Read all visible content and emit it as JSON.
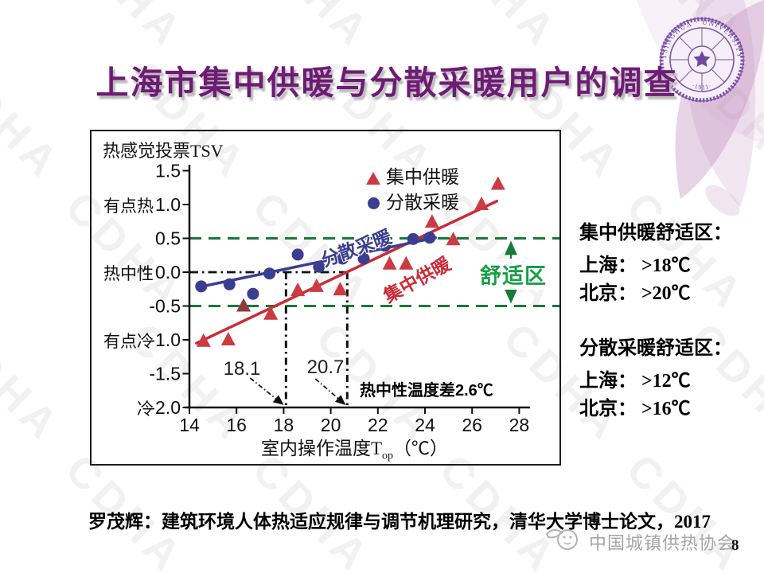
{
  "slide": {
    "title": "上海市集中供暖与分散采暖用户的调查",
    "citation": "罗茂辉：建筑环境人体热适应规律与调节机理研究，清华大学博士论文，2017",
    "footer_org": "中国城镇供热协会",
    "page_number": "8",
    "watermark_text": "CDHA"
  },
  "seal": {
    "ring_text": "TSINGHUA · UNIVERSITY",
    "year": "·1911·"
  },
  "right_panel": {
    "central": {
      "header": "集中供暖舒适区：",
      "shanghai": "上海： >18℃",
      "beijing": "北京： >20℃"
    },
    "separate": {
      "header": "分散采暖舒适区：",
      "shanghai": "上海： >12℃",
      "beijing": "北京： >16℃"
    }
  },
  "chart_data": {
    "type": "scatter",
    "title": "热感觉投票TSV",
    "xlabel_main": "室内操作温度T",
    "xlabel_sub": "op",
    "xlabel_unit": "（℃）",
    "xlim": [
      14,
      28.6
    ],
    "ylim": [
      -2.0,
      1.6
    ],
    "grid": false,
    "x_ticks": [
      "14",
      "16",
      "18",
      "20",
      "22",
      "24",
      "26",
      "28"
    ],
    "y_ticks": [
      "1.5",
      "1.0",
      "0.5",
      "0.0",
      "-0.5",
      "-1.0",
      "-1.5",
      "-2.0"
    ],
    "y_category_labels": [
      {
        "label": "有点热",
        "value": 1.0
      },
      {
        "label": "热中性",
        "value": 0.0
      },
      {
        "label": "有点冷",
        "value": -1.0
      },
      {
        "label": "冷",
        "value": -2.0
      }
    ],
    "series": [
      {
        "name": "集中供暖",
        "marker": "triangle",
        "color": "#cb3b44",
        "dark_point_index": 2,
        "dark_color": "#8f3b3b",
        "line_color": "#cb2b36",
        "line_label": "集中供暖",
        "points": [
          [
            14.6,
            -1.02
          ],
          [
            15.65,
            -1.0
          ],
          [
            16.3,
            -0.5
          ],
          [
            17.45,
            -0.62
          ],
          [
            18.6,
            -0.27
          ],
          [
            19.4,
            -0.21
          ],
          [
            20.4,
            -0.26
          ],
          [
            22.5,
            0.12
          ],
          [
            23.2,
            0.12
          ],
          [
            24.3,
            0.74
          ],
          [
            25.2,
            0.48
          ],
          [
            26.4,
            1.0
          ],
          [
            27.1,
            1.3
          ]
        ],
        "trend": [
          [
            14.3,
            -1.05
          ],
          [
            27.05,
            1.05
          ]
        ]
      },
      {
        "name": "分散采暖",
        "marker": "circle",
        "color": "#3b3e90",
        "line_color": "#3b3e90",
        "line_label": "分散采暖",
        "points": [
          [
            14.5,
            -0.21
          ],
          [
            15.7,
            -0.18
          ],
          [
            16.7,
            -0.32
          ],
          [
            17.4,
            -0.02
          ],
          [
            18.6,
            0.26
          ],
          [
            19.5,
            0.08
          ],
          [
            20.5,
            0.2
          ],
          [
            21.4,
            0.2
          ],
          [
            22.3,
            0.39
          ],
          [
            23.5,
            0.49
          ],
          [
            24.2,
            0.51
          ]
        ],
        "trend": [
          [
            14.55,
            -0.21
          ],
          [
            24.45,
            0.51
          ]
        ]
      }
    ],
    "legend": {
      "position": "top-right-inside",
      "items": [
        "集中供暖",
        "分散采暖"
      ]
    },
    "comfort_zone": {
      "label": "舒适区",
      "y_top": 0.5,
      "y_bottom": -0.5,
      "color": "#17a047",
      "line_color": "#187a3a"
    },
    "neutral_annotation": {
      "y": 0.0,
      "separate_neutral_temp": 18.1,
      "central_neutral_temp": 20.7,
      "label_separate": "18.1",
      "label_central": "20.7",
      "note": "热中性温度差2.6℃"
    }
  },
  "colors": {
    "title": "#6e1b75",
    "accent_red": "#cb3b44",
    "accent_blue": "#3b3e90",
    "green": "#17a047",
    "footer_gray": "#a6a6a6",
    "seal_purple": "#7d55a6"
  }
}
